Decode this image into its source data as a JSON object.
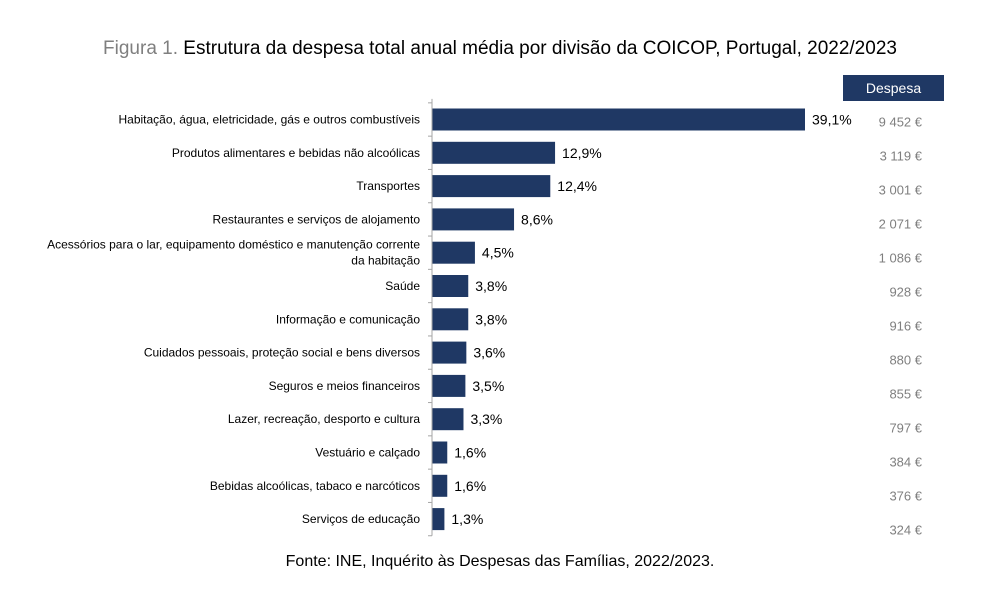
{
  "title": {
    "prefix": "Figura 1.",
    "text": "Estrutura da despesa total anual média por divisão da COICOP, Portugal, 2022/2023"
  },
  "spend_header": "Despesa",
  "source": "Fonte: INE, Inquérito às Despesas das Famílias, 2022/2023.",
  "colors": {
    "bar": "#1f3864",
    "spend_text": "#7f7f7f",
    "header_bg": "#1f3864"
  },
  "chart_data": {
    "type": "bar",
    "orientation": "horizontal",
    "title": "Estrutura da despesa total anual média por divisão da COICOP, Portugal, 2022/2023",
    "xlabel": "",
    "ylabel": "",
    "xlim": [
      0,
      39.1
    ],
    "grid": false,
    "categories": [
      [
        "Habitação, água, eletricidade, gás e outros combustíveis"
      ],
      [
        "Produtos alimentares e bebidas não alcoólicas"
      ],
      [
        "Transportes"
      ],
      [
        "Restaurantes e serviços de alojamento"
      ],
      [
        "Acessórios para o lar, equipamento doméstico e manutenção corrente",
        "da habitação"
      ],
      [
        "Saúde"
      ],
      [
        "Informação e comunicação"
      ],
      [
        "Cuidados pessoais, proteção social e bens diversos"
      ],
      [
        "Seguros e meios financeiros"
      ],
      [
        "Lazer, recreação, desporto e cultura"
      ],
      [
        "Vestuário e calçado"
      ],
      [
        "Bebidas alcoólicas, tabaco e narcóticos"
      ],
      [
        "Serviços de educação"
      ]
    ],
    "values": [
      39.1,
      12.9,
      12.4,
      8.6,
      4.5,
      3.8,
      3.8,
      3.6,
      3.5,
      3.3,
      1.6,
      1.6,
      1.3
    ],
    "value_labels": [
      "39,1%",
      "12,9%",
      "12,4%",
      "8,6%",
      "4,5%",
      "3,8%",
      "3,8%",
      "3,6%",
      "3,5%",
      "3,3%",
      "1,6%",
      "1,6%",
      "1,3%"
    ],
    "spending": [
      "9 452 €",
      "3 119 €",
      "3 001 €",
      "2 071 €",
      "1 086 €",
      "928 €",
      "916 €",
      "880 €",
      "855 €",
      "797 €",
      "384 €",
      "376 €",
      "324 €"
    ]
  }
}
